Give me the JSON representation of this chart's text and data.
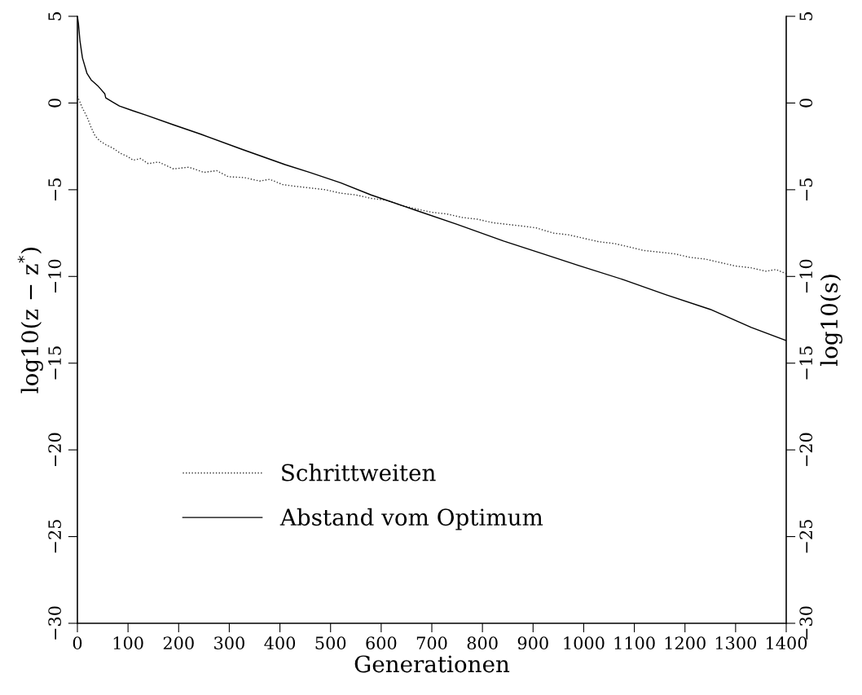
{
  "chart_data": {
    "type": "line",
    "xlabel": "Generationen",
    "ylabel": "log10(z − z$^{*}$)",
    "y2label": "log10(s)",
    "xlim": [
      0,
      1400
    ],
    "xticks": [
      0,
      100,
      200,
      300,
      400,
      500,
      600,
      700,
      800,
      900,
      1000,
      1100,
      1200,
      1300,
      1400
    ],
    "ylim": [
      -30,
      5
    ],
    "yticks": [
      -30,
      -25,
      -20,
      -15,
      -10,
      -5,
      0,
      5
    ],
    "y2lim": [
      -30,
      5
    ],
    "y2ticks": [
      -30,
      -25,
      -20,
      -15,
      -10,
      -5,
      0,
      5
    ],
    "grid": false,
    "legend": "bottom left",
    "marker": "none",
    "series": [
      {
        "name": "Schrittweiten",
        "color": "#333333",
        "line_style": "dotted",
        "x": [
          0,
          10,
          19,
          27,
          35,
          45,
          56,
          70,
          85,
          100,
          110,
          125,
          140,
          160,
          190,
          220,
          250,
          275,
          298,
          330,
          360,
          380,
          405,
          430,
          460,
          490,
          520,
          550,
          580,
          610,
          640,
          668,
          700,
          730,
          760,
          790,
          820,
          850,
          880,
          906,
          940,
          970,
          1000,
          1030,
          1060,
          1090,
          1118,
          1150,
          1180,
          1210,
          1240,
          1270,
          1300,
          1330,
          1360,
          1380,
          1400
        ],
        "values": [
          0.4,
          -0.3,
          -0.8,
          -1.4,
          -1.9,
          -2.2,
          -2.4,
          -2.6,
          -2.9,
          -3.1,
          -3.3,
          -3.2,
          -3.5,
          -3.4,
          -3.8,
          -3.7,
          -4.0,
          -3.9,
          -4.25,
          -4.3,
          -4.5,
          -4.4,
          -4.7,
          -4.8,
          -4.9,
          -5.0,
          -5.2,
          -5.3,
          -5.5,
          -5.6,
          -5.9,
          -6.1,
          -6.3,
          -6.4,
          -6.6,
          -6.7,
          -6.9,
          -7.0,
          -7.1,
          -7.2,
          -7.5,
          -7.6,
          -7.8,
          -8.0,
          -8.1,
          -8.3,
          -8.5,
          -8.6,
          -8.7,
          -8.9,
          -9.0,
          -9.2,
          -9.4,
          -9.5,
          -9.7,
          -9.6,
          -9.85
        ]
      },
      {
        "name": "Abstand vom Optimum",
        "color": "#000000",
        "line_style": "solid",
        "x": [
          0,
          2,
          5,
          10,
          19,
          27,
          40,
          54,
          56,
          70,
          83,
          110,
          137,
          190,
          244,
          325,
          410,
          459,
          520,
          580,
          668,
          750,
          842,
          920,
          990,
          1080,
          1163,
          1250,
          1331,
          1400
        ],
        "values": [
          5,
          4.6,
          3.6,
          2.6,
          1.7,
          1.34,
          1.0,
          0.54,
          0.3,
          0.05,
          -0.17,
          -0.45,
          -0.71,
          -1.26,
          -1.8,
          -2.67,
          -3.55,
          -4.0,
          -4.6,
          -5.3,
          -6.18,
          -7.0,
          -7.96,
          -8.7,
          -9.37,
          -10.2,
          -11.06,
          -11.9,
          -12.94,
          -13.7
        ]
      }
    ]
  }
}
